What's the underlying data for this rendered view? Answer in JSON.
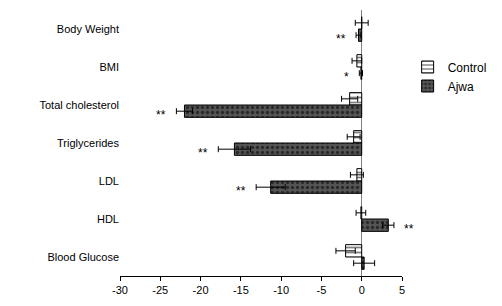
{
  "chart_data": {
    "type": "bar",
    "orientation": "horizontal",
    "categories": [
      "Body Weight",
      "BMI",
      "Total cholesterol",
      "Triglycerides",
      "LDL",
      "HDL",
      "Blood Glucose"
    ],
    "series": [
      {
        "name": "Control",
        "color": "#ffffff",
        "marker": "lines",
        "values": [
          0.0,
          -0.6,
          -1.5,
          -1.0,
          -0.6,
          -0.1,
          -2.0
        ],
        "errors": [
          0.8,
          0.6,
          1.0,
          0.8,
          0.8,
          0.6,
          1.2
        ]
      },
      {
        "name": "Ajwa",
        "color": "#555555",
        "marker": "dots",
        "values": [
          -0.4,
          -0.1,
          -22.0,
          -15.8,
          -11.3,
          3.3,
          0.3
        ],
        "errors": [
          0.3,
          0.2,
          1.0,
          2.0,
          1.8,
          0.7,
          1.3
        ]
      }
    ],
    "annotations": [
      {
        "text": "**",
        "category": "Body Weight",
        "series": "Ajwa"
      },
      {
        "text": "*",
        "category": "BMI",
        "series": "Ajwa"
      },
      {
        "text": "**",
        "category": "Total cholesterol",
        "series": "Ajwa"
      },
      {
        "text": "**",
        "category": "Triglycerides",
        "series": "Ajwa"
      },
      {
        "text": "**",
        "category": "LDL",
        "series": "Ajwa"
      },
      {
        "text": "**",
        "category": "HDL",
        "series": "Ajwa"
      }
    ],
    "xlim": [
      -30,
      5
    ],
    "xticks": [
      -30,
      -25,
      -20,
      -15,
      -10,
      -5,
      0,
      5
    ],
    "grid": false,
    "legend": "right"
  }
}
